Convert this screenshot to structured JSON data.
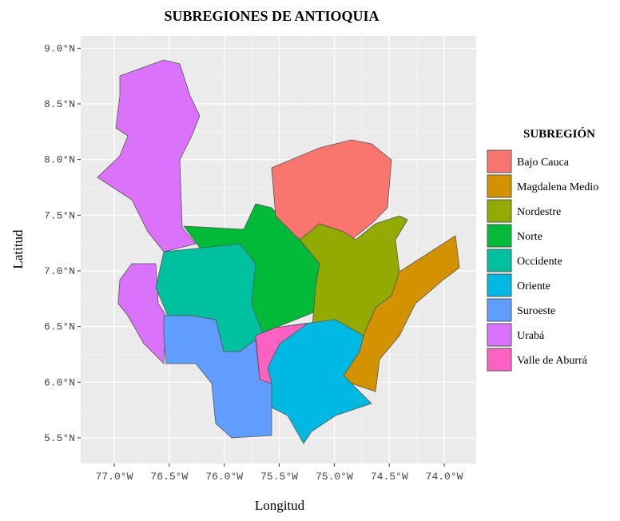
{
  "chart_data": {
    "type": "map",
    "title": "SUBREGIONES DE ANTIOQUIA",
    "x_label": "Longitud",
    "y_label": "Latitud",
    "xlim": [
      -77.305,
      -73.71
    ],
    "ylim": [
      5.27,
      9.11
    ],
    "xticks": [
      {
        "value": -77.0,
        "label": "77.0°W"
      },
      {
        "value": -76.5,
        "label": "76.5°W"
      },
      {
        "value": -76.0,
        "label": "76.0°W"
      },
      {
        "value": -75.5,
        "label": "75.5°W"
      },
      {
        "value": -75.0,
        "label": "75.0°W"
      },
      {
        "value": -74.5,
        "label": "74.5°W"
      },
      {
        "value": -74.0,
        "label": "74.0°W"
      }
    ],
    "yticks": [
      {
        "value": 5.5,
        "label": "5.5°N"
      },
      {
        "value": 6.0,
        "label": "6.0°N"
      },
      {
        "value": 6.5,
        "label": "6.5°N"
      },
      {
        "value": 7.0,
        "label": "7.0°N"
      },
      {
        "value": 7.5,
        "label": "7.5°N"
      },
      {
        "value": 8.0,
        "label": "8.0°N"
      },
      {
        "value": 8.5,
        "label": "8.5°N"
      },
      {
        "value": 9.0,
        "label": "9.0°N"
      }
    ],
    "grid": true,
    "legend": {
      "title": "SUBREGIÓN",
      "position": "right",
      "items": [
        {
          "name": "Bajo Cauca",
          "color": "#f8766d"
        },
        {
          "name": "Magdalena Medio",
          "color": "#d39200"
        },
        {
          "name": "Nordestre",
          "color": "#93aa00"
        },
        {
          "name": "Norte",
          "color": "#00ba38"
        },
        {
          "name": "Occidente",
          "color": "#00c19f"
        },
        {
          "name": "Oriente",
          "color": "#00b9e3"
        },
        {
          "name": "Suroeste",
          "color": "#619cff"
        },
        {
          "name": "Urabá",
          "color": "#db72fb"
        },
        {
          "name": "Valle de Aburrá",
          "color": "#ff61c3"
        }
      ]
    }
  }
}
